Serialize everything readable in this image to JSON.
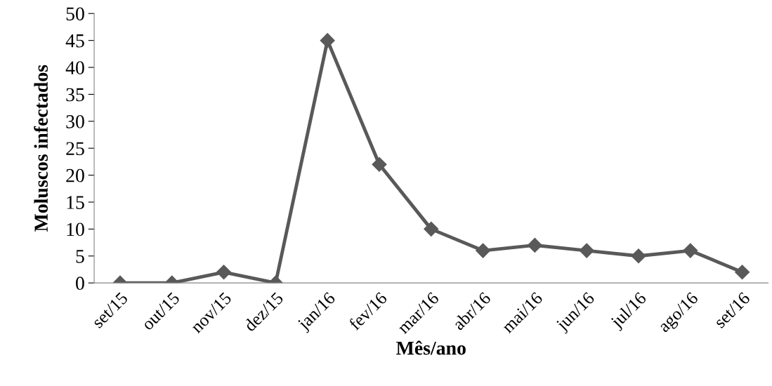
{
  "chart_data": {
    "type": "line",
    "xlabel": "Mês/ano",
    "ylabel": "Moluscos infectados",
    "categories": [
      "set/15",
      "out/15",
      "nov/15",
      "dez/15",
      "jan/16",
      "fev/16",
      "mar/16",
      "abr/16",
      "mai/16",
      "jun/16",
      "jul/16",
      "ago/16",
      "set/16"
    ],
    "series": [
      {
        "color": "#595959",
        "values": [
          0,
          0,
          2,
          0,
          45,
          22,
          10,
          6,
          7,
          6,
          5,
          6,
          2
        ]
      }
    ],
    "ylim": [
      0,
      50
    ],
    "yticks": [
      0,
      5,
      10,
      15,
      20,
      25,
      30,
      35,
      40,
      45,
      50
    ],
    "marker": "diamond",
    "line_style": "solid",
    "grid": false,
    "legend": false
  }
}
